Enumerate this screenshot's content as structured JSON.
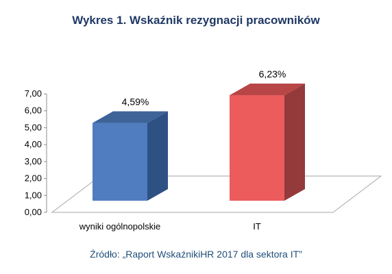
{
  "chart_data": {
    "type": "bar",
    "title": "Wykres 1. Wskaźnik rezygnacji pracowników",
    "source": "Źródło: „Raport WskaźnikiHR 2017 dla sektora IT”",
    "categories": [
      "wyniki ogólnopolskie",
      "IT"
    ],
    "values": [
      4.59,
      6.23
    ],
    "data_labels": [
      "4,59%",
      "6,23%"
    ],
    "y_ticks": [
      "0,00",
      "1,00",
      "2,00",
      "3,00",
      "4,00",
      "5,00",
      "6,00",
      "7,00"
    ],
    "ylim": [
      0,
      7
    ],
    "grid": false,
    "legend": false,
    "style": "3d",
    "colors": {
      "bar1_front": "#4F7DC0",
      "bar1_side": "#2E5184",
      "bar1_top": "#3D6399",
      "bar2_front": "#EC5C5C",
      "bar2_side": "#943A3A",
      "bar2_top": "#B84646",
      "title": "#1F3864",
      "source": "#1F4E79"
    }
  }
}
